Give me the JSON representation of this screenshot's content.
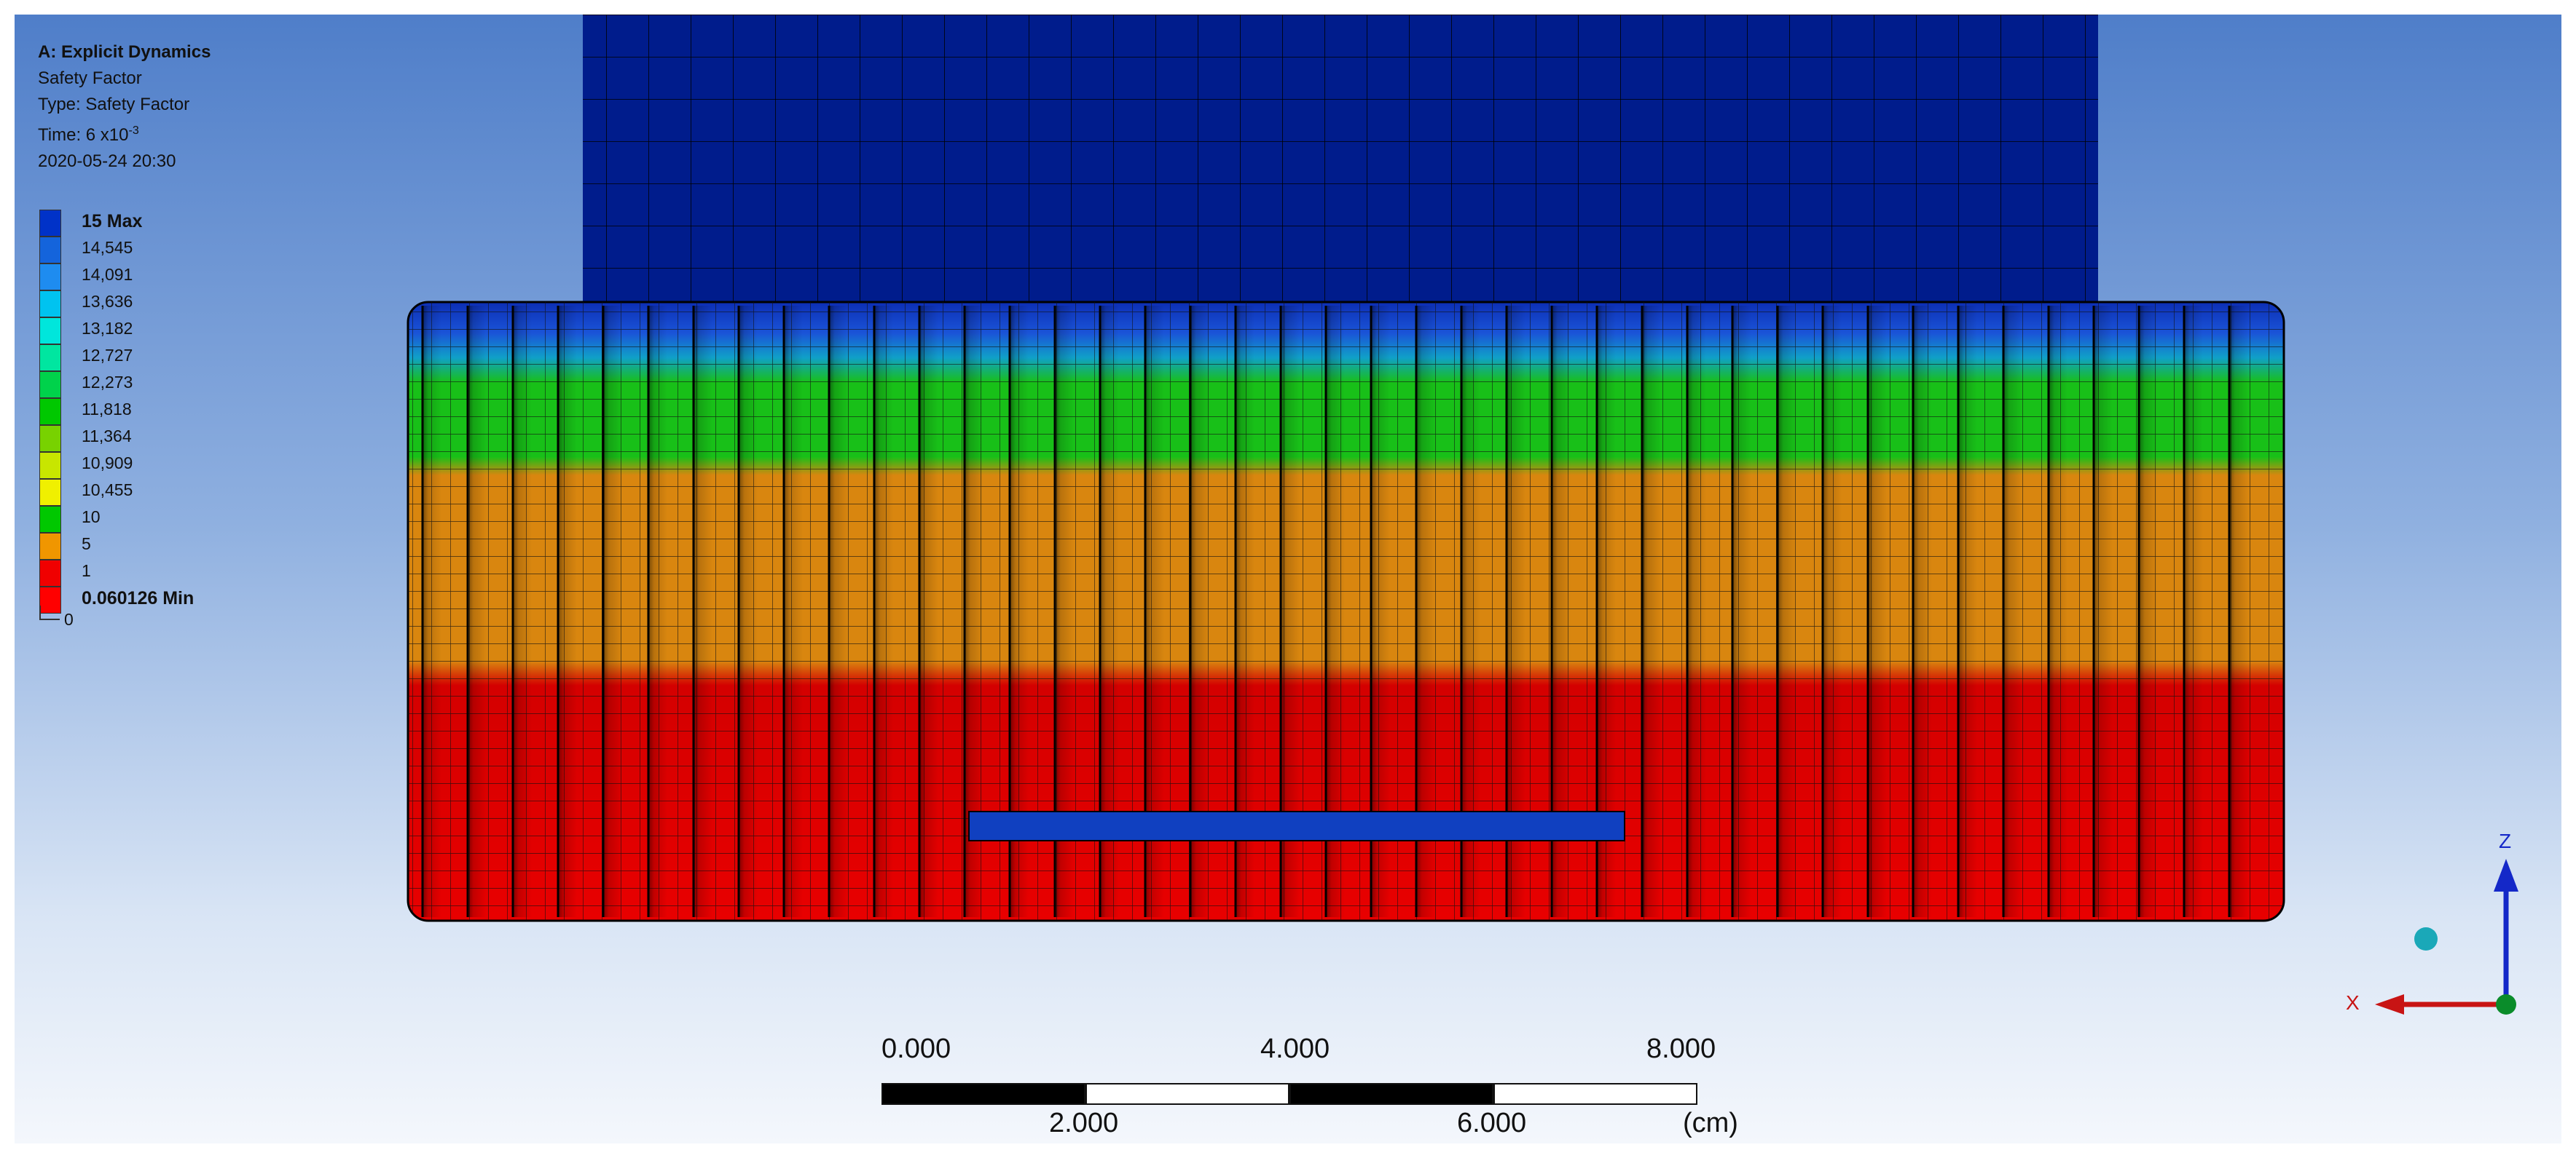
{
  "info": {
    "title": "A: Explicit Dynamics",
    "result": "Safety Factor",
    "type": "Type: Safety Factor",
    "time_prefix": "Time: 6 x10",
    "time_exp": "-3",
    "timestamp": "2020-05-24 20:30"
  },
  "legend": {
    "items": [
      {
        "label": "15 Max",
        "color": "#0032c8",
        "bold": true
      },
      {
        "label": "14,545",
        "color": "#1464dc"
      },
      {
        "label": "14,091",
        "color": "#1e8cf0"
      },
      {
        "label": "13,636",
        "color": "#00c3f0"
      },
      {
        "label": "13,182",
        "color": "#00e6dc"
      },
      {
        "label": "12,727",
        "color": "#00e6a0"
      },
      {
        "label": "12,273",
        "color": "#00d24b"
      },
      {
        "label": "11,818",
        "color": "#00c800"
      },
      {
        "label": "11,364",
        "color": "#78d200"
      },
      {
        "label": "10,909",
        "color": "#c8e600"
      },
      {
        "label": "10,455",
        "color": "#f0f000"
      },
      {
        "label": "10",
        "color": "#00c800"
      },
      {
        "label": "5",
        "color": "#f09600"
      },
      {
        "label": "1",
        "color": "#f00000"
      },
      {
        "label": "0.060126 Min",
        "color": "#ff0000",
        "bold": true
      }
    ],
    "zero_label": "0"
  },
  "scale": {
    "top_labels": [
      "0.000",
      "4.000",
      "8.000"
    ],
    "bottom_labels": [
      "2.000",
      "6.000"
    ],
    "unit": "(cm)"
  },
  "triad": {
    "z_label": "Z",
    "x_label": "X"
  },
  "colors": {
    "shaft": "#001c8c",
    "orange": "#d9860f",
    "green": "#14b814",
    "red": "#e00000",
    "blue": "#1040c0",
    "mesh": "#000000"
  }
}
